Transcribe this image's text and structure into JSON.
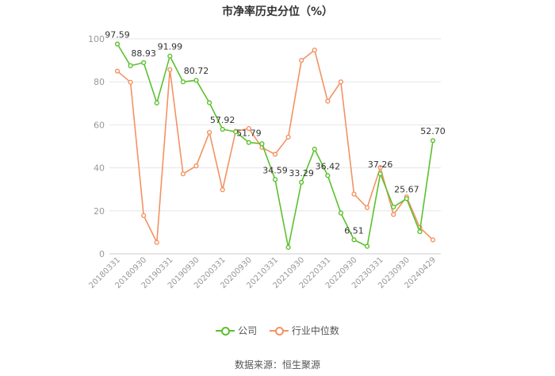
{
  "chart_data": {
    "type": "line",
    "title": "市净率历史分位（%）",
    "xlabel": "",
    "ylabel": "",
    "ylim": [
      0,
      100
    ],
    "yticks": [
      0,
      20,
      40,
      60,
      80,
      100
    ],
    "grid": true,
    "legend_position": "bottom",
    "x": [
      "20180331",
      "20180630",
      "20180930",
      "20181231",
      "20190331",
      "20190630",
      "20190930",
      "20191231",
      "20200331",
      "20200630",
      "20200930",
      "20201231",
      "20210331",
      "20210630",
      "20210930",
      "20211231",
      "20220331",
      "20220630",
      "20220930",
      "20221231",
      "20230331",
      "20230630",
      "20230930",
      "20231231",
      "20240429"
    ],
    "x_tick_labels": [
      "20180331",
      "20180930",
      "20190331",
      "20190930",
      "20200331",
      "20200930",
      "20210331",
      "20210930",
      "20220331",
      "20220930",
      "20230331",
      "20230930",
      "20240429"
    ],
    "series": [
      {
        "name": "公司",
        "color": "#5cc02e",
        "values": [
          97.59,
          87.5,
          88.93,
          70.2,
          91.99,
          80.0,
          80.72,
          70.3,
          57.92,
          56.8,
          51.79,
          51.2,
          34.59,
          3.0,
          33.29,
          48.7,
          36.42,
          19.0,
          6.51,
          3.5,
          37.26,
          21.8,
          25.67,
          10.3,
          52.7
        ],
        "labels": {
          "0": "97.59",
          "2": "88.93",
          "4": "91.99",
          "6": "80.72",
          "8": "57.92",
          "10": "51.79",
          "12": "34.59",
          "14": "33.29",
          "16": "36.42",
          "18": "6.51",
          "20": "37.26",
          "22": "25.67",
          "24": "52.70"
        }
      },
      {
        "name": "行业中位数",
        "color": "#f39262",
        "values": [
          85.0,
          79.8,
          17.8,
          5.3,
          85.7,
          37.2,
          40.9,
          56.5,
          29.8,
          57.0,
          58.3,
          49.5,
          46.3,
          54.3,
          90.0,
          94.8,
          71.0,
          80.0,
          27.8,
          21.5,
          40.2,
          18.3,
          26.5,
          12.3,
          6.5
        ]
      }
    ]
  },
  "source": "数据来源：恒生聚源"
}
